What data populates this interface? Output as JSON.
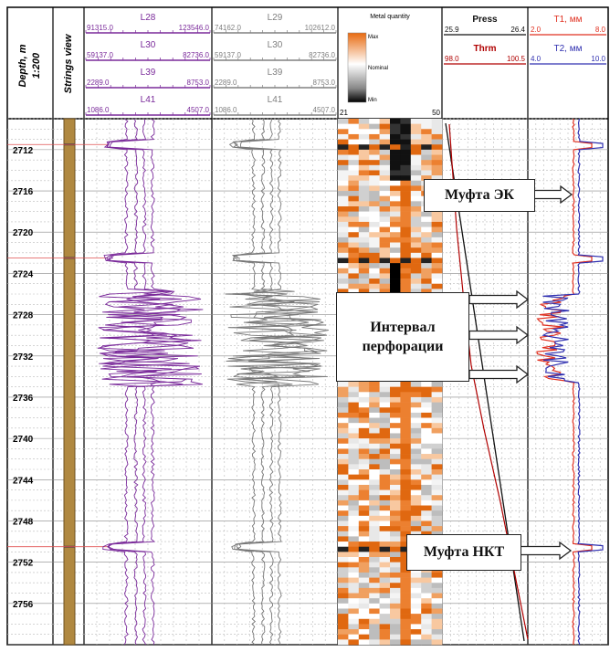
{
  "chart_data": {
    "type": "line",
    "title": "",
    "depth_track": {
      "label": "Depth, m",
      "scale": "1:200",
      "range_m": [
        2709,
        2760
      ],
      "tick_labels": [
        "2712",
        "2716",
        "2720",
        "2724",
        "2728",
        "2732",
        "2736",
        "2740",
        "2744",
        "2748",
        "2752",
        "2756"
      ]
    },
    "strings_track": {
      "label": "Strings view"
    },
    "curve_headers_color": [
      {
        "name": "L28",
        "min": "91315.0",
        "max": "123546.0"
      },
      {
        "name": "L30",
        "min": "59137.0",
        "max": "82736.0"
      },
      {
        "name": "L39",
        "min": "2289.0",
        "max": "8753.0"
      },
      {
        "name": "L41",
        "min": "1086.0",
        "max": "4507.0"
      }
    ],
    "curve_headers_gray": [
      {
        "name": "L29",
        "min": "74162.0",
        "max": "102612.0"
      },
      {
        "name": "L30",
        "min": "59137.0",
        "max": "82736.0"
      },
      {
        "name": "L39",
        "min": "2289.0",
        "max": "8753.0"
      },
      {
        "name": "L41",
        "min": "1086.0",
        "max": "4507.0"
      }
    ],
    "metal_map": {
      "title": "Metal quantity",
      "legend": [
        "Max",
        "Nominal",
        "Min"
      ],
      "x_min": "21",
      "x_max": "50"
    },
    "press_track": {
      "curves": [
        {
          "name": "Press",
          "min": "25.9",
          "max": "26.4",
          "color": "#111111"
        },
        {
          "name": "Thrm",
          "min": "98.0",
          "max": "100.5",
          "color": "#b00000"
        }
      ]
    },
    "thickness_track": {
      "curves": [
        {
          "name": "T1, мм",
          "min": "2.0",
          "max": "8.0",
          "color": "#e03020"
        },
        {
          "name": "T2, мм",
          "min": "4.0",
          "max": "10.0",
          "color": "#3030b0"
        }
      ]
    },
    "collar_depths_m": [
      2711.5,
      2722.5,
      2750.5
    ],
    "perforation_interval_m": [
      2727,
      2734
    ],
    "annotations": [
      {
        "label": "Муфта ЭК",
        "depth_m": 2716
      },
      {
        "label": "Интервал перфорации",
        "depth_from_m": 2726,
        "depth_to_m": 2734
      },
      {
        "label": "Муфта НКТ",
        "depth_m": 2751
      }
    ]
  }
}
